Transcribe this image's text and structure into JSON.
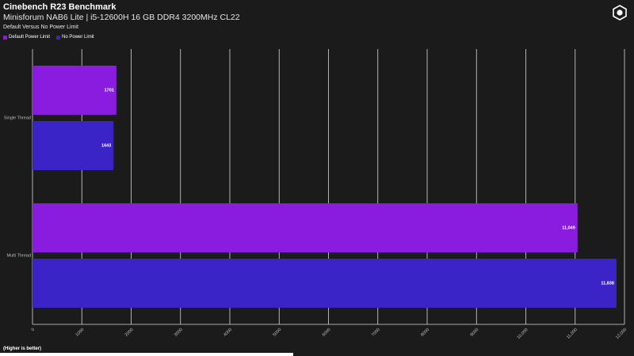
{
  "header": {
    "title": "Cinebench R23 Benchmark",
    "subtitle": "Minisforum NAB6 Lite | i5-12600H 16 GB DDR4 3200MHz CL22",
    "caption": "Default Versus No Power Limit"
  },
  "footer": {
    "note": "(Higher is better)"
  },
  "logo_icon": "hexagon-logo-icon",
  "chart_data": {
    "type": "bar",
    "orientation": "horizontal",
    "categories": [
      "Single Thread",
      "Multi Thread"
    ],
    "series": [
      {
        "name": "Default Power Limit",
        "color": "#8a1ce0",
        "values": [
          1701,
          11049
        ],
        "labels": [
          "1701",
          "11,049"
        ]
      },
      {
        "name": "No Power Limit",
        "color": "#3a23c7",
        "values": [
          1643,
          11838
        ],
        "labels": [
          "1643",
          "11,838"
        ]
      }
    ],
    "xlim": [
      0,
      12000
    ],
    "xticks": [
      0,
      1000,
      2000,
      3000,
      4000,
      5000,
      6000,
      7000,
      8000,
      9000,
      10000,
      11000,
      12000
    ],
    "xtick_labels": [
      "0",
      "1000",
      "2000",
      "3000",
      "4000",
      "5000",
      "6000",
      "7000",
      "8000",
      "9000",
      "10,000",
      "11,000",
      "12,000"
    ],
    "grid": true,
    "legend_position": "top-left"
  }
}
